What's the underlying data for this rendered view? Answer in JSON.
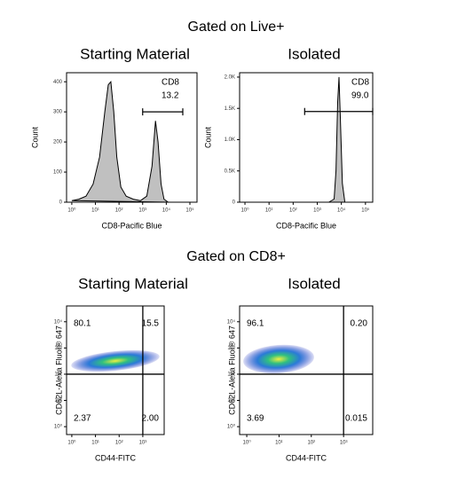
{
  "headings": [
    "Gated on Live+",
    "Gated on CD8+"
  ],
  "chart_data": [
    {
      "type": "area",
      "title": "Starting Material",
      "x_label": "CD8-Pacific Blue",
      "y_label": "Count",
      "x": [
        1,
        2,
        4,
        8,
        15,
        25,
        35,
        45,
        60,
        80,
        120,
        200,
        400,
        800,
        1500,
        2500,
        3500,
        4500,
        6000,
        8000,
        12000
      ],
      "values": [
        5,
        10,
        20,
        60,
        150,
        300,
        390,
        400,
        300,
        150,
        50,
        20,
        10,
        5,
        20,
        120,
        270,
        200,
        60,
        10,
        0
      ],
      "color": "#c0c0c0",
      "x_log": true,
      "xlim": [
        0.6,
        200000
      ],
      "ylim": [
        0,
        430
      ],
      "xticks": [
        {
          "value": 1,
          "label": "10⁰"
        },
        {
          "value": 10,
          "label": "10¹"
        },
        {
          "value": 100,
          "label": "10²"
        },
        {
          "value": 1000,
          "label": "10³"
        },
        {
          "value": 10000,
          "label": "10⁴"
        },
        {
          "value": 100000,
          "label": "10⁵"
        }
      ],
      "yticks": [
        0,
        100,
        200,
        300,
        400
      ],
      "gate": {
        "name": "CD8",
        "values": [
          13.2
        ],
        "value_labels": [
          "13.2"
        ],
        "x": [
          1000,
          50000
        ],
        "y": 300
      }
    },
    {
      "type": "area",
      "title": "Isolated",
      "x_label": "CD8-Pacific Blue",
      "y_label": "Count",
      "x": [
        3000,
        5000,
        6000,
        7000,
        8000,
        9000,
        11000,
        14000
      ],
      "values": [
        0,
        50,
        500,
        1600,
        2000,
        1400,
        300,
        0
      ],
      "color": "#c0c0c0",
      "x_log": true,
      "xlim": [
        0.6,
        200000
      ],
      "ylim": [
        0,
        2070
      ],
      "xticks": [
        {
          "value": 1,
          "label": "10⁰"
        },
        {
          "value": 10,
          "label": "10¹"
        },
        {
          "value": 100,
          "label": "10²"
        },
        {
          "value": 1000,
          "label": "10³"
        },
        {
          "value": 10000,
          "label": "10⁴"
        },
        {
          "value": 100000,
          "label": "10⁵"
        }
      ],
      "yticks": [
        0,
        {
          "value": 500,
          "label": "0.5K"
        },
        {
          "value": 1000,
          "label": "1.0K"
        },
        {
          "value": 1500,
          "label": "1.5K"
        },
        {
          "value": 2000,
          "label": "2.0K"
        }
      ],
      "gate": {
        "name": "CD8",
        "values": [
          99
        ],
        "value_labels": [
          "99.0"
        ],
        "x": [
          300,
          200000
        ],
        "y": 1450
      }
    },
    {
      "type": "quadrant",
      "title": "Starting Material",
      "x_label": "CD44-FITC",
      "y_label": "CD62L-Alexa Fluor® 647",
      "values": [
        80.1,
        15.5,
        2.37,
        2
      ],
      "value_labels": [
        "80.1",
        "15.5",
        "2.37",
        "2.00"
      ],
      "gate_x": 1000,
      "gate_y": 100,
      "x_log": true,
      "y_log": true,
      "xlim": [
        0.6,
        8000
      ],
      "ylim": [
        0.5,
        40000
      ],
      "xticks": [
        {
          "value": 1,
          "label": "10⁰"
        },
        {
          "value": 10,
          "label": "10¹"
        },
        {
          "value": 100,
          "label": "10²"
        },
        {
          "value": 1000,
          "label": "10³"
        }
      ],
      "yticks": [
        {
          "value": 1,
          "label": "10⁰"
        },
        {
          "value": 10,
          "label": "10¹"
        },
        {
          "value": 100,
          "label": "10²"
        },
        {
          "value": 1000,
          "label": "10³"
        },
        {
          "value": 10000,
          "label": "10⁴"
        }
      ]
    },
    {
      "type": "quadrant",
      "title": "Isolated",
      "x_label": "CD44-FITC",
      "y_label": "CD62L-Alexa Fluor® 647",
      "values": [
        96.1,
        0.2,
        3.69,
        0.015
      ],
      "value_labels": [
        "96.1",
        "0.20",
        "3.69",
        "0.015"
      ],
      "gate_x": 1000,
      "gate_y": 100,
      "x_log": true,
      "y_log": true,
      "xlim": [
        0.6,
        8000
      ],
      "ylim": [
        0.5,
        40000
      ],
      "xticks": [
        {
          "value": 1,
          "label": "10⁰"
        },
        {
          "value": 10,
          "label": "10¹"
        },
        {
          "value": 100,
          "label": "10²"
        },
        {
          "value": 1000,
          "label": "10³"
        }
      ],
      "yticks": [
        {
          "value": 1,
          "label": "10⁰"
        },
        {
          "value": 10,
          "label": "10¹"
        },
        {
          "value": 100,
          "label": "10²"
        },
        {
          "value": 1000,
          "label": "10³"
        },
        {
          "value": 10000,
          "label": "10⁴"
        }
      ]
    }
  ]
}
